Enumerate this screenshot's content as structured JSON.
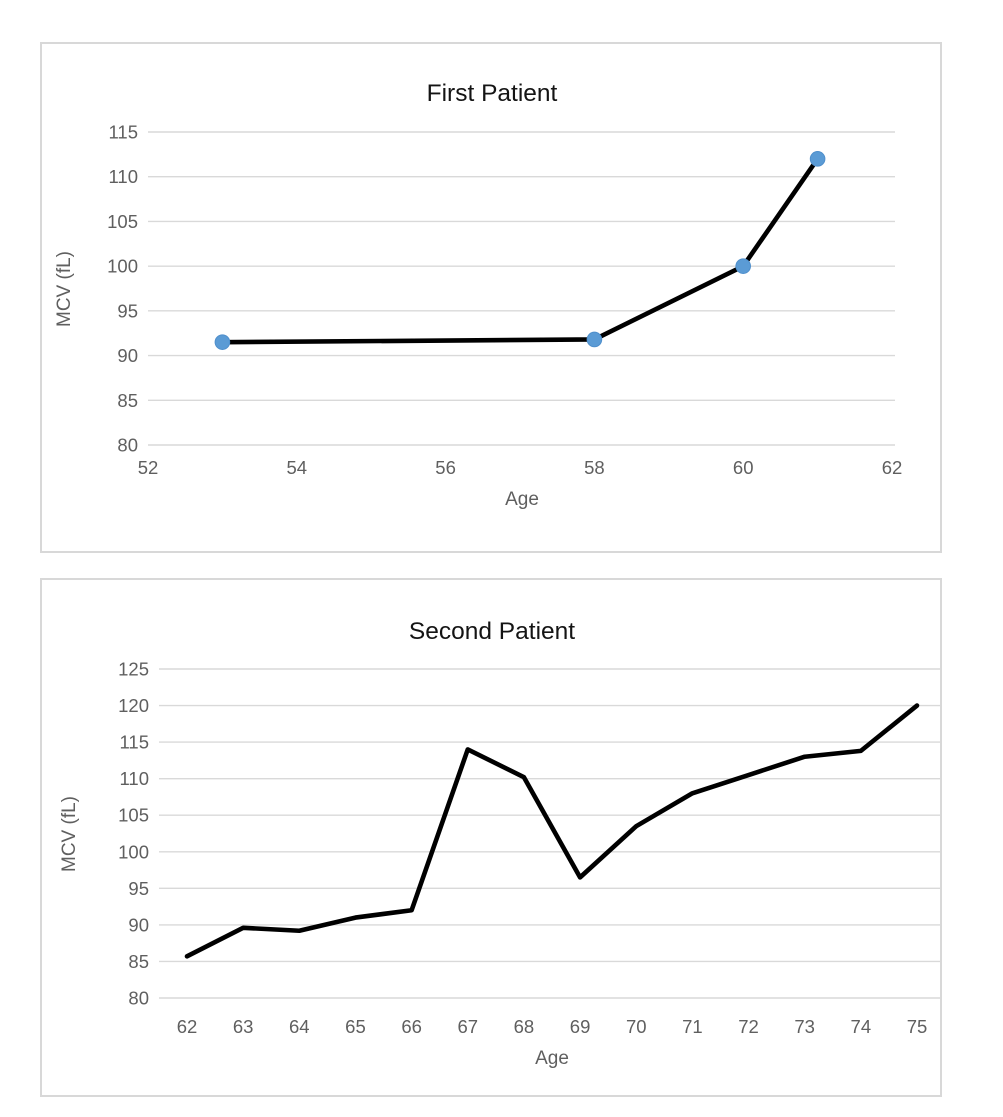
{
  "chart_data": [
    {
      "type": "line",
      "title": "First Patient",
      "xlabel": "Age",
      "ylabel": "MCV (fL)",
      "x": [
        53,
        58,
        60,
        61
      ],
      "y": [
        91.5,
        91.8,
        100,
        112
      ],
      "x_ticks": [
        52,
        54,
        56,
        58,
        60,
        62
      ],
      "x_range": [
        52,
        62
      ],
      "y_ticks": [
        80,
        85,
        90,
        95,
        100,
        105,
        110,
        115
      ],
      "ylim": [
        80,
        115
      ],
      "grid": true,
      "legend_position": "none",
      "markers": true,
      "line_color": "#000000",
      "marker_color": "#5b9bd5"
    },
    {
      "type": "line",
      "title": "Second Patient",
      "xlabel": "Age",
      "ylabel": "MCV (fL)",
      "x": [
        62,
        63,
        64,
        65,
        66,
        67,
        68,
        69,
        70,
        71,
        72,
        73,
        74,
        75
      ],
      "y": [
        85.7,
        89.6,
        89.2,
        91,
        92,
        114,
        110.2,
        96.5,
        103.5,
        108,
        110.5,
        113,
        113.8,
        120
      ],
      "x_ticks": [
        62,
        63,
        64,
        65,
        66,
        67,
        68,
        69,
        70,
        71,
        72,
        73,
        74,
        75
      ],
      "x_range": [
        62,
        75
      ],
      "y_ticks": [
        80,
        85,
        90,
        95,
        100,
        105,
        110,
        115,
        120,
        125
      ],
      "ylim": [
        80,
        125
      ],
      "grid": true,
      "legend_position": "none",
      "markers": false,
      "line_color": "#000000",
      "marker_color": "#5b9bd5"
    }
  ],
  "styles": {
    "background": "#ffffff",
    "panel_border_color": "#d8d8d8",
    "gridline_color": "#d9d9d9",
    "tick_label_color": "#5f5f5f",
    "title_color": "#141414",
    "series_line_color": "#000000",
    "marker_fill_color": "#5b9bd5"
  }
}
